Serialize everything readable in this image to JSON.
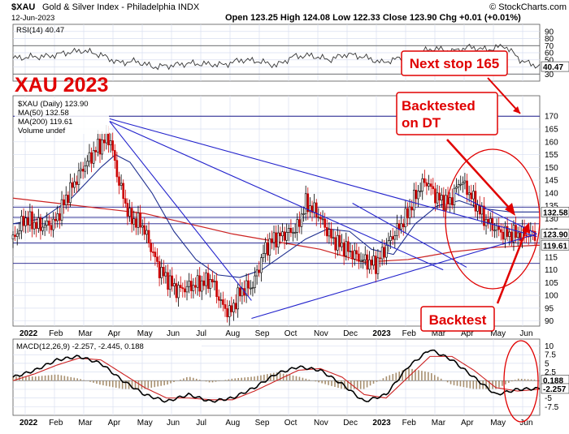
{
  "header": {
    "symbol": "$XAU",
    "name": "Gold & Silver Index - Philadelphia INDX",
    "date": "12-Jun-2023",
    "brand": "© StockCharts.com",
    "ohlc": "Open 123.25  High 124.08  Low 122.33  Close 123.90  Chg +0.01 (+0.01%)"
  },
  "annotations": {
    "title": "XAU 2023",
    "next_stop": "Next stop 165",
    "backtested_line1": "Backtested",
    "backtested_line2": "on DT",
    "backtest": "Backtest"
  },
  "legend": {
    "price": "$XAU (Daily) 123.90",
    "ma50": "MA(50) 132.58",
    "ma200": "MA(200) 119.61",
    "volume": "Volume undef"
  },
  "colors": {
    "up": "#000000",
    "down": "#cc0000",
    "ma50": "#1f2f8f",
    "ma200": "#cc2222",
    "trend": "#2222cc",
    "annotation": "#e00000",
    "grid": "#d9dff0"
  },
  "chart_data": [
    {
      "type": "line",
      "title": "RSI(14) 40.47",
      "ylim": [
        20,
        100
      ],
      "y_ticks": [
        90,
        80,
        70,
        60,
        50,
        40,
        30
      ],
      "reference_lines": [
        70,
        30
      ],
      "last_value": "40.47",
      "series": [
        {
          "name": "RSI(14)",
          "x": [
            0,
            12,
            24,
            36,
            48,
            60,
            72,
            84,
            96,
            108,
            120,
            132,
            144,
            156,
            168,
            180,
            192,
            204,
            216,
            228,
            240,
            252,
            264,
            276,
            288,
            300,
            312,
            324,
            336,
            348,
            360
          ],
          "values": [
            52,
            54,
            55,
            60,
            63,
            57,
            46,
            48,
            40,
            42,
            45,
            44,
            43,
            50,
            48,
            42,
            55,
            56,
            50,
            58,
            54,
            46,
            52,
            60,
            66,
            62,
            68,
            64,
            70,
            48,
            40.47
          ]
        }
      ]
    },
    {
      "type": "candlestick",
      "title": "$XAU (Daily) 123.90",
      "ylim": [
        88,
        178
      ],
      "y_ticks": [
        170,
        165,
        160,
        155,
        150,
        145,
        140,
        135,
        130,
        125,
        120,
        115,
        110,
        105,
        100,
        95,
        90
      ],
      "x_tick_labels": [
        "2022",
        "Feb",
        "Mar",
        "Apr",
        "May",
        "Jun",
        "Jul",
        "Aug",
        "Sep",
        "Oct",
        "Nov",
        "Dec",
        "2023",
        "Feb",
        "Mar",
        "Apr",
        "May",
        "Jun"
      ],
      "last_values": {
        "close": "123.90",
        "ma50": "132.58",
        "ma200": "119.61"
      },
      "close_path": {
        "x": [
          0,
          8,
          18,
          28,
          38,
          48,
          58,
          66,
          72,
          80,
          88,
          100,
          112,
          124,
          136,
          142,
          148,
          156,
          164,
          172,
          178,
          186,
          194,
          200,
          208,
          218,
          228,
          238,
          248,
          258,
          268,
          276,
          282,
          290,
          298,
          306,
          314,
          322,
          330,
          336,
          342,
          348,
          356,
          360
        ],
        "y": [
          122,
          130,
          127,
          128,
          140,
          150,
          158,
          162,
          145,
          130,
          128,
          110,
          102,
          104,
          106,
          97,
          93,
          102,
          104,
          118,
          122,
          124,
          126,
          136,
          132,
          122,
          118,
          114,
          112,
          122,
          130,
          140,
          145,
          138,
          136,
          145,
          138,
          130,
          126,
          124,
          123.9,
          123.9,
          123.9,
          123.9
        ]
      },
      "series": [
        {
          "name": "MA(50)",
          "x": [
            0,
            20,
            40,
            60,
            70,
            80,
            95,
            110,
            125,
            140,
            155,
            170,
            185,
            200,
            215,
            230,
            245,
            260,
            275,
            290,
            305,
            320,
            340,
            360
          ],
          "values": [
            128,
            130,
            138,
            150,
            155,
            152,
            140,
            125,
            114,
            108,
            107,
            110,
            116,
            122,
            126,
            125,
            118,
            116,
            128,
            135,
            137,
            134,
            132.6,
            132.58
          ]
        },
        {
          "name": "MA(200)",
          "x": [
            0,
            30,
            60,
            90,
            120,
            150,
            180,
            210,
            240,
            270,
            300,
            330,
            360
          ],
          "values": [
            138,
            136,
            134,
            132,
            128,
            124,
            121,
            118,
            113,
            114,
            117,
            118.8,
            119.61
          ]
        }
      ],
      "horizontal_levels": [
        170,
        134.5,
        130.5,
        128,
        120.5,
        112.5
      ]
    },
    {
      "type": "line",
      "title": "MACD(12,26,9) -2.257, -2.445, 0.188",
      "ylim": [
        -10,
        12
      ],
      "y_ticks": [
        10,
        7.5,
        5,
        2.5,
        0,
        -2.5,
        -5,
        -7.5
      ],
      "last_values": {
        "macd": "-2.257",
        "signal": "-2.445",
        "histogram": "0.188"
      },
      "series": [
        {
          "name": "MACD",
          "x": [
            0,
            15,
            30,
            45,
            60,
            75,
            90,
            105,
            120,
            135,
            150,
            165,
            180,
            195,
            210,
            225,
            240,
            255,
            270,
            285,
            300,
            315,
            330,
            345,
            360
          ],
          "values": [
            1,
            3,
            6,
            7,
            5,
            0,
            -4,
            -6,
            -4,
            -6,
            -5,
            -2,
            2,
            4,
            3,
            -1,
            -6,
            -4,
            4,
            9,
            6,
            1,
            -4,
            -2.5,
            -2.257
          ]
        },
        {
          "name": "Signal",
          "x": [
            0,
            15,
            30,
            45,
            60,
            75,
            90,
            105,
            120,
            135,
            150,
            165,
            180,
            195,
            210,
            225,
            240,
            255,
            270,
            285,
            300,
            315,
            330,
            345,
            360
          ],
          "values": [
            0,
            2,
            4.5,
            6.5,
            6,
            2,
            -2,
            -5,
            -5,
            -5.5,
            -5.5,
            -3,
            0,
            3,
            3.5,
            1,
            -4,
            -5,
            1,
            7,
            7,
            3,
            -2,
            -3,
            -2.445
          ]
        }
      ]
    }
  ]
}
